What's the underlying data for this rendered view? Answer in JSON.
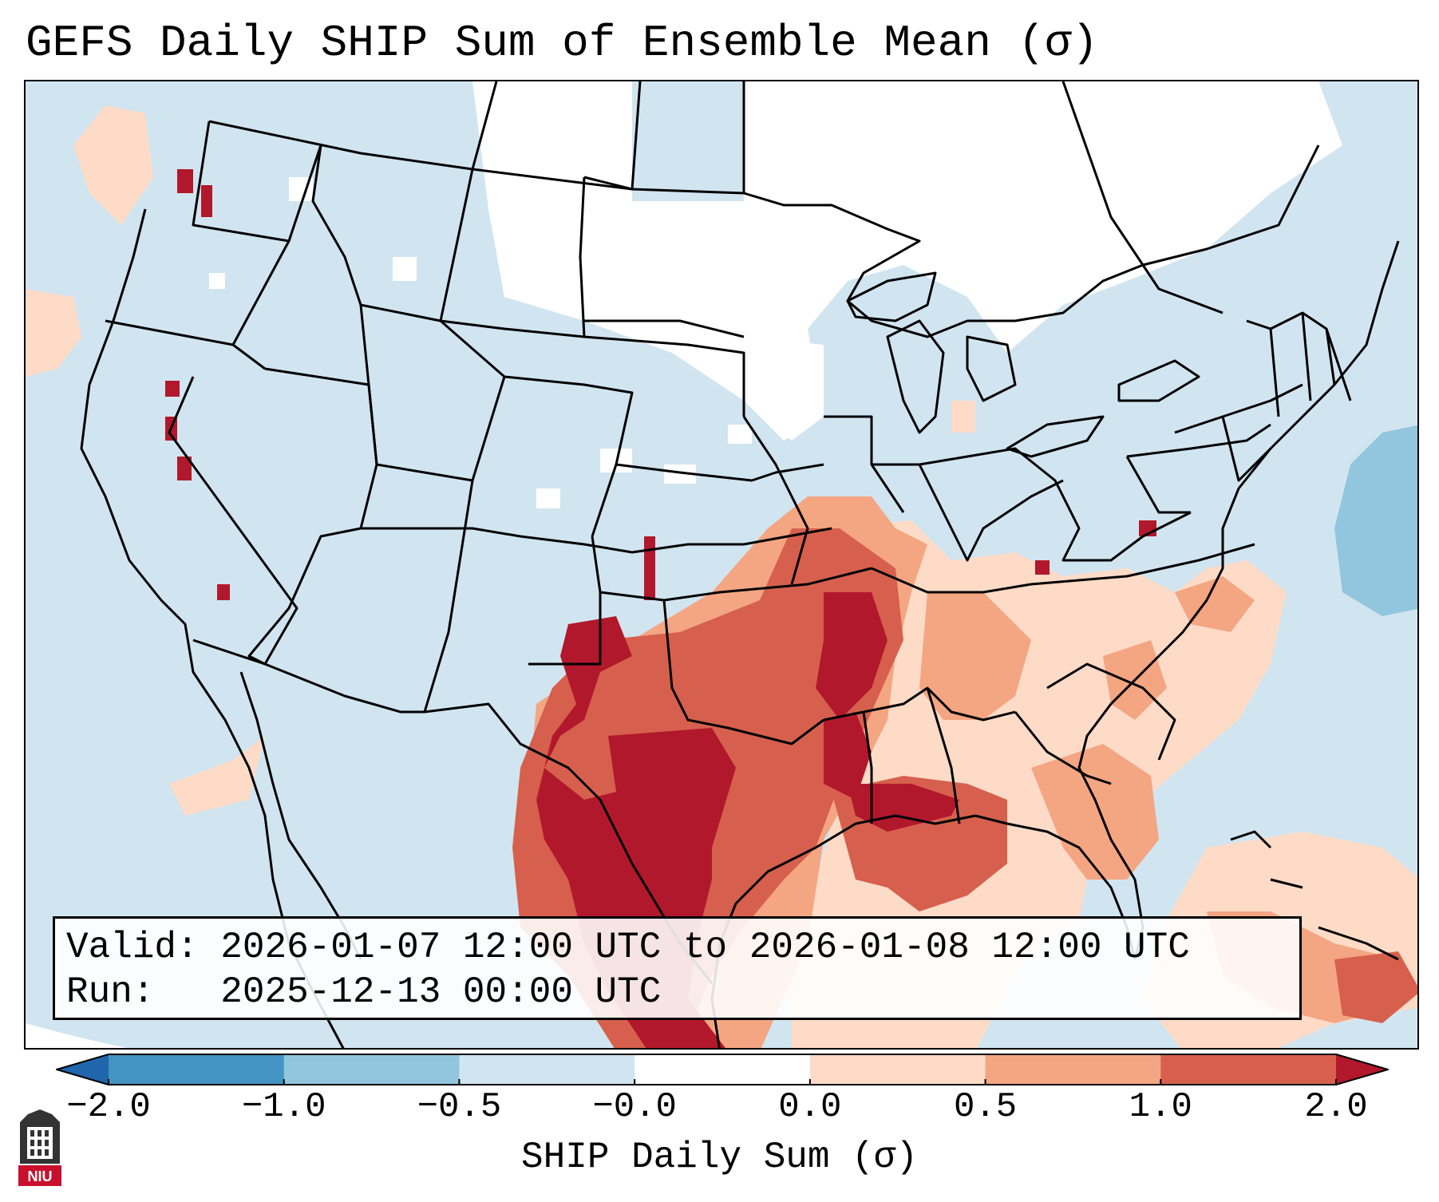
{
  "title": "GEFS Daily SHIP Sum of Ensemble Mean (σ)",
  "info": {
    "valid_label": "Valid:",
    "valid_value": "2026-01-07 12:00 UTC to 2026-01-08 12:00 UTC",
    "run_label": "Run:",
    "run_value": "2025-12-13 00:00 UTC"
  },
  "colorbar": {
    "label": "SHIP Daily Sum (σ)",
    "ticks": [
      "−2.0",
      "−1.0",
      "−0.5",
      "−0.0",
      "0.0",
      "0.5",
      "1.0",
      "2.0"
    ],
    "bins": [
      {
        "range": "<-2.0",
        "color": "#2166ac"
      },
      {
        "range": "-2.0 to -1.0",
        "color": "#4393c3"
      },
      {
        "range": "-1.0 to -0.5",
        "color": "#92c5de"
      },
      {
        "range": "-0.5 to -0.0",
        "color": "#d1e5f0"
      },
      {
        "range": "-0.0 to 0.0",
        "color": "#ffffff"
      },
      {
        "range": "0.0 to 0.5",
        "color": "#fddbc7"
      },
      {
        "range": "0.5 to 1.0",
        "color": "#f4a582"
      },
      {
        "range": "1.0 to 2.0",
        "color": "#d6604d"
      },
      {
        "range": ">2.0",
        "color": "#b2182b"
      }
    ]
  },
  "logo": {
    "text": "NIU",
    "color": "#c8102e"
  }
}
